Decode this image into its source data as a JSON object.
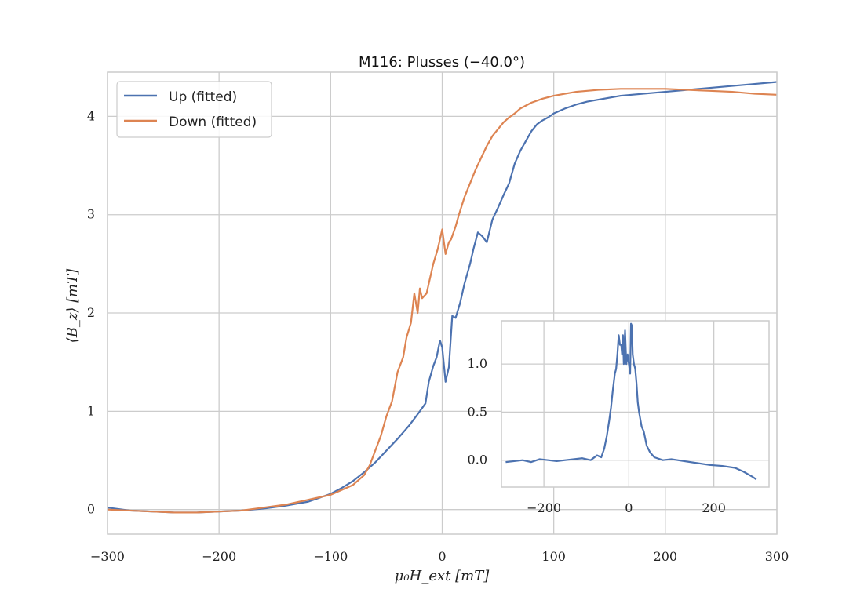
{
  "colors": {
    "up": "#4c72b0",
    "down": "#dd8452",
    "grid": "#cccccc",
    "frame": "#cccccc"
  },
  "chart_data": [
    {
      "type": "line",
      "title": "M116:  Plusses (−40.0°)",
      "xlabel": "μ₀H_ext [mT]",
      "ylabel": "⟨B_z⟩ [mT]",
      "xlim": [
        -300,
        300
      ],
      "ylim": [
        -0.25,
        4.45
      ],
      "xticks": [
        -300,
        -200,
        -100,
        0,
        100,
        200,
        300
      ],
      "xtick_labels": [
        "−300",
        "−200",
        "−100",
        "0",
        "100",
        "200",
        "300"
      ],
      "yticks": [
        0,
        1,
        2,
        3,
        4
      ],
      "ytick_labels": [
        "0",
        "1",
        "2",
        "3",
        "4"
      ],
      "grid": true,
      "legend": "top-left",
      "series": [
        {
          "name": "Up (fitted)",
          "x": [
            -300,
            -280,
            -260,
            -240,
            -220,
            -200,
            -180,
            -160,
            -140,
            -120,
            -100,
            -90,
            -80,
            -70,
            -60,
            -50,
            -40,
            -30,
            -22,
            -15,
            -12,
            -8,
            -5,
            -2,
            0,
            3,
            6,
            9,
            12,
            16,
            20,
            25,
            28,
            32,
            36,
            40,
            45,
            50,
            55,
            60,
            65,
            70,
            75,
            80,
            85,
            90,
            95,
            100,
            110,
            120,
            130,
            140,
            150,
            160,
            170,
            180,
            190,
            200,
            220,
            240,
            260,
            280,
            300
          ],
          "y": [
            0.02,
            -0.01,
            -0.02,
            -0.03,
            -0.03,
            -0.02,
            -0.01,
            0.01,
            0.04,
            0.08,
            0.16,
            0.22,
            0.29,
            0.38,
            0.48,
            0.6,
            0.72,
            0.85,
            0.97,
            1.08,
            1.3,
            1.46,
            1.55,
            1.72,
            1.65,
            1.3,
            1.45,
            1.97,
            1.95,
            2.1,
            2.3,
            2.5,
            2.65,
            2.82,
            2.78,
            2.72,
            2.95,
            3.07,
            3.2,
            3.32,
            3.52,
            3.65,
            3.75,
            3.85,
            3.92,
            3.96,
            3.99,
            4.03,
            4.08,
            4.12,
            4.15,
            4.17,
            4.19,
            4.21,
            4.22,
            4.23,
            4.24,
            4.25,
            4.27,
            4.29,
            4.31,
            4.33,
            4.35
          ]
        },
        {
          "name": "Down (fitted)",
          "x": [
            -300,
            -280,
            -260,
            -240,
            -220,
            -200,
            -180,
            -160,
            -140,
            -120,
            -100,
            -90,
            -80,
            -75,
            -70,
            -65,
            -60,
            -55,
            -50,
            -45,
            -40,
            -35,
            -32,
            -28,
            -25,
            -22,
            -20,
            -18,
            -14,
            -12,
            -8,
            -4,
            0,
            3,
            6,
            8,
            12,
            15,
            20,
            25,
            30,
            35,
            40,
            45,
            50,
            55,
            60,
            65,
            70,
            80,
            90,
            100,
            120,
            140,
            160,
            180,
            200,
            220,
            240,
            260,
            280,
            300
          ],
          "y": [
            0.0,
            -0.01,
            -0.02,
            -0.03,
            -0.03,
            -0.02,
            -0.01,
            0.02,
            0.05,
            0.1,
            0.15,
            0.2,
            0.25,
            0.3,
            0.35,
            0.45,
            0.6,
            0.75,
            0.95,
            1.1,
            1.4,
            1.55,
            1.75,
            1.9,
            2.2,
            2.0,
            2.25,
            2.15,
            2.2,
            2.3,
            2.5,
            2.65,
            2.85,
            2.6,
            2.72,
            2.75,
            2.88,
            3.0,
            3.18,
            3.32,
            3.46,
            3.58,
            3.7,
            3.8,
            3.87,
            3.94,
            3.99,
            4.03,
            4.08,
            4.14,
            4.18,
            4.21,
            4.25,
            4.27,
            4.28,
            4.28,
            4.28,
            4.27,
            4.26,
            4.25,
            4.23,
            4.22
          ]
        }
      ]
    },
    {
      "type": "line",
      "title": "",
      "xlabel": "",
      "ylabel": "",
      "xlim": [
        -300,
        330
      ],
      "ylim": [
        -0.28,
        1.45
      ],
      "xticks": [
        -200,
        0,
        200
      ],
      "xtick_labels": [
        "−200",
        "0",
        "200"
      ],
      "yticks": [
        0.0,
        0.5,
        1.0
      ],
      "ytick_labels": [
        "0.0",
        "0.5",
        "1.0"
      ],
      "grid": true,
      "series": [
        {
          "x": [
            -290,
            -270,
            -250,
            -230,
            -210,
            -190,
            -170,
            -150,
            -130,
            -110,
            -90,
            -75,
            -65,
            -58,
            -52,
            -46,
            -42,
            -38,
            -33,
            -30,
            -27,
            -24,
            -21,
            -18,
            -16,
            -14,
            -12,
            -9,
            -6,
            -3,
            0,
            3,
            5,
            7,
            9,
            12,
            15,
            18,
            21,
            24,
            30,
            35,
            42,
            50,
            60,
            80,
            100,
            130,
            160,
            190,
            220,
            250,
            270,
            290,
            300
          ],
          "y": [
            -0.02,
            -0.01,
            0.0,
            -0.02,
            0.01,
            0.0,
            -0.01,
            0.0,
            0.01,
            0.02,
            0.0,
            0.05,
            0.03,
            0.12,
            0.25,
            0.42,
            0.55,
            0.72,
            0.9,
            0.95,
            1.1,
            1.3,
            1.2,
            1.2,
            1.1,
            1.3,
            1.0,
            1.35,
            1.0,
            1.1,
            1.0,
            0.9,
            1.42,
            1.4,
            1.1,
            1.0,
            0.95,
            0.8,
            0.6,
            0.5,
            0.35,
            0.3,
            0.15,
            0.08,
            0.03,
            0.0,
            0.01,
            -0.01,
            -0.03,
            -0.05,
            -0.06,
            -0.08,
            -0.12,
            -0.17,
            -0.2
          ]
        }
      ]
    }
  ]
}
